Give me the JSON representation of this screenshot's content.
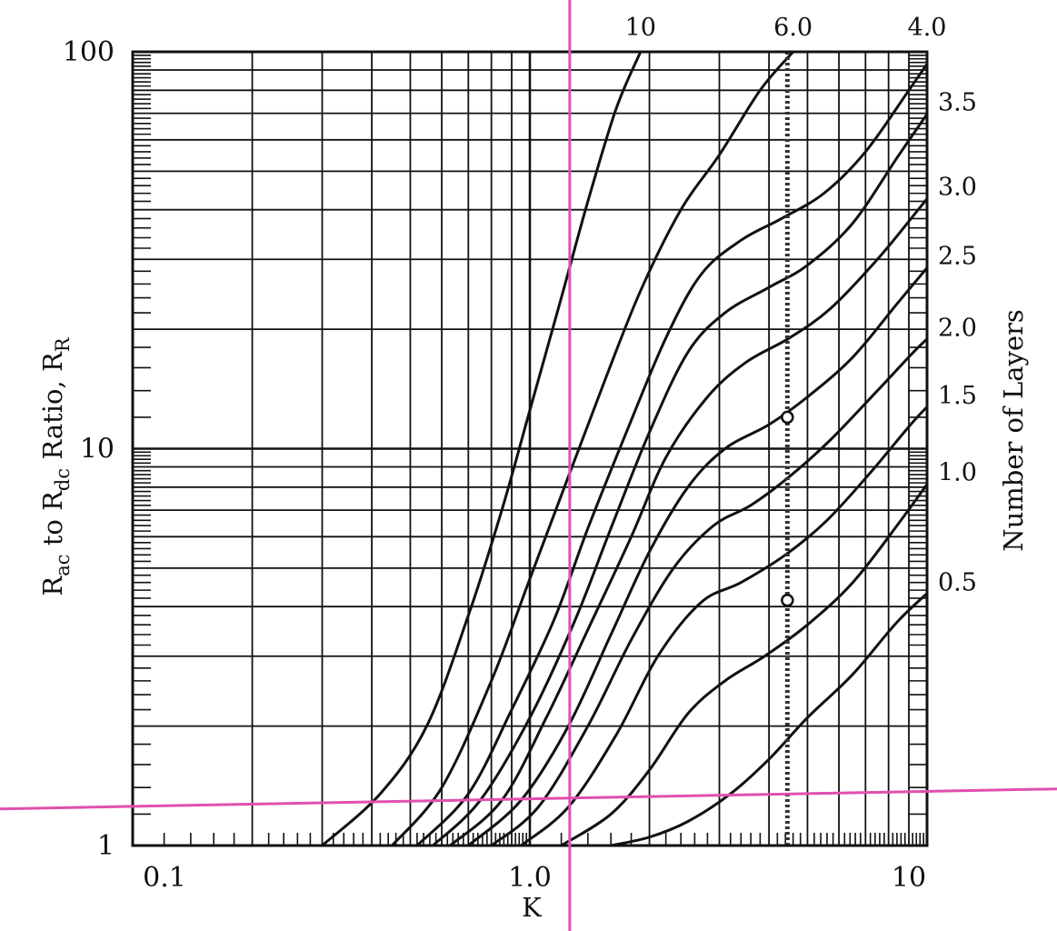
{
  "chart_data": {
    "type": "line",
    "title": "",
    "xlabel": "K",
    "ylabel_parts": [
      "R",
      "ac",
      " to R",
      "dc",
      " Ratio, R",
      "R"
    ],
    "y2label": "Number of Layers",
    "xscale": "log",
    "yscale": "log",
    "xlim": [
      0.1,
      10
    ],
    "ylim": [
      1,
      100
    ],
    "grid": true,
    "x_tick_labels": [
      {
        "value": 0.1,
        "label": "0.1"
      },
      {
        "value": 1.0,
        "label": "1.0"
      },
      {
        "value": 10,
        "label": "10"
      }
    ],
    "y_tick_labels": [
      {
        "value": 1,
        "label": "1"
      },
      {
        "value": 10,
        "label": "10"
      },
      {
        "value": 100,
        "label": "100"
      }
    ],
    "series": [
      {
        "name": "10",
        "points": [
          [
            0.3,
            1.0
          ],
          [
            0.42,
            1.35
          ],
          [
            0.55,
            2.0
          ],
          [
            0.7,
            3.8
          ],
          [
            0.85,
            7.0
          ],
          [
            1.0,
            12.5
          ],
          [
            1.2,
            24.0
          ],
          [
            1.4,
            42.0
          ],
          [
            1.65,
            72.0
          ],
          [
            1.9,
            100.0
          ]
        ]
      },
      {
        "name": "6.0",
        "points": [
          [
            0.45,
            1.0
          ],
          [
            0.6,
            1.4
          ],
          [
            0.8,
            2.6
          ],
          [
            1.0,
            4.7
          ],
          [
            1.25,
            8.5
          ],
          [
            1.55,
            15.0
          ],
          [
            1.9,
            25.0
          ],
          [
            2.4,
            40.0
          ],
          [
            3.0,
            55.0
          ],
          [
            3.8,
            80.0
          ],
          [
            4.6,
            100.0
          ]
        ]
      },
      {
        "name": "4.0",
        "points": [
          [
            0.52,
            1.0
          ],
          [
            0.7,
            1.35
          ],
          [
            0.9,
            2.2
          ],
          [
            1.15,
            3.7
          ],
          [
            1.4,
            6.3
          ],
          [
            1.75,
            11.0
          ],
          [
            2.2,
            19.0
          ],
          [
            2.7,
            27.5
          ],
          [
            3.4,
            33.5
          ],
          [
            4.3,
            38.0
          ],
          [
            5.5,
            44.0
          ],
          [
            7.0,
            56.0
          ],
          [
            9.0,
            80.0
          ],
          [
            10.5,
            100.0
          ]
        ]
      },
      {
        "name": "3.5",
        "points": [
          [
            0.57,
            1.0
          ],
          [
            0.75,
            1.3
          ],
          [
            1.0,
            2.1
          ],
          [
            1.3,
            3.7
          ],
          [
            1.6,
            6.3
          ],
          [
            2.0,
            11.0
          ],
          [
            2.5,
            17.5
          ],
          [
            3.1,
            22.0
          ],
          [
            4.0,
            25.5
          ],
          [
            5.0,
            29.0
          ],
          [
            6.5,
            37.0
          ],
          [
            8.5,
            55.0
          ],
          [
            11.0,
            80.0
          ]
        ]
      },
      {
        "name": "3.0",
        "points": [
          [
            0.63,
            1.0
          ],
          [
            0.85,
            1.3
          ],
          [
            1.1,
            2.1
          ],
          [
            1.4,
            3.5
          ],
          [
            1.8,
            6.0
          ],
          [
            2.2,
            9.5
          ],
          [
            2.8,
            13.5
          ],
          [
            3.5,
            16.5
          ],
          [
            4.5,
            19.0
          ],
          [
            5.7,
            22.5
          ],
          [
            7.5,
            30.0
          ],
          [
            9.5,
            40.0
          ],
          [
            11.0,
            48.0
          ]
        ]
      },
      {
        "name": "2.5",
        "points": [
          [
            0.7,
            1.0
          ],
          [
            0.95,
            1.3
          ],
          [
            1.25,
            2.0
          ],
          [
            1.6,
            3.4
          ],
          [
            2.0,
            5.5
          ],
          [
            2.5,
            8.0
          ],
          [
            3.1,
            10.0
          ],
          [
            4.0,
            11.5
          ],
          [
            5.0,
            13.5
          ],
          [
            6.5,
            17.0
          ],
          [
            8.5,
            23.5
          ],
          [
            11.0,
            32.0
          ]
        ]
      },
      {
        "name": "2.0",
        "points": [
          [
            0.8,
            1.0
          ],
          [
            1.05,
            1.25
          ],
          [
            1.4,
            2.0
          ],
          [
            1.8,
            3.3
          ],
          [
            2.3,
            5.0
          ],
          [
            2.9,
            6.4
          ],
          [
            3.6,
            7.2
          ],
          [
            4.5,
            8.5
          ],
          [
            5.7,
            10.5
          ],
          [
            7.5,
            14.0
          ],
          [
            9.5,
            18.0
          ],
          [
            11.0,
            20.5
          ]
        ]
      },
      {
        "name": "1.5",
        "points": [
          [
            0.95,
            1.0
          ],
          [
            1.25,
            1.25
          ],
          [
            1.65,
            1.9
          ],
          [
            2.1,
            3.0
          ],
          [
            2.7,
            4.1
          ],
          [
            3.4,
            4.6
          ],
          [
            4.4,
            5.4
          ],
          [
            5.6,
            6.6
          ],
          [
            7.2,
            8.7
          ],
          [
            9.3,
            11.8
          ],
          [
            11.0,
            14.0
          ]
        ]
      },
      {
        "name": "1.0",
        "points": [
          [
            1.2,
            1.0
          ],
          [
            1.6,
            1.2
          ],
          [
            2.0,
            1.55
          ],
          [
            2.5,
            2.15
          ],
          [
            3.1,
            2.6
          ],
          [
            3.9,
            3.0
          ],
          [
            5.0,
            3.6
          ],
          [
            6.5,
            4.6
          ],
          [
            8.5,
            6.5
          ],
          [
            11.0,
            9.3
          ]
        ]
      },
      {
        "name": "0.5",
        "points": [
          [
            1.6,
            1.0
          ],
          [
            2.0,
            1.05
          ],
          [
            2.5,
            1.15
          ],
          [
            3.2,
            1.35
          ],
          [
            4.0,
            1.65
          ],
          [
            5.0,
            2.1
          ],
          [
            6.5,
            2.7
          ],
          [
            8.5,
            3.7
          ],
          [
            11.0,
            4.7
          ]
        ]
      }
    ],
    "layer_labels": [
      {
        "label": "10",
        "series": "10"
      },
      {
        "label": "6.0",
        "series": "6.0"
      },
      {
        "label": "4.0",
        "series": "4.0"
      },
      {
        "label": "3.5",
        "series": "3.5"
      },
      {
        "label": "3.0",
        "series": "3.0"
      },
      {
        "label": "2.5",
        "series": "2.5"
      },
      {
        "label": "2.0",
        "series": "2.0"
      },
      {
        "label": "1.5",
        "series": "1.5"
      },
      {
        "label": "1.0",
        "series": "1.0"
      },
      {
        "label": "0.5",
        "series": "0.5"
      }
    ],
    "marker_line_x": 4.45,
    "marker_points": [
      [
        4.45,
        12.0
      ],
      [
        4.45,
        4.15
      ]
    ],
    "overlay_crosshair": {
      "x": 1.26,
      "y": 1.25,
      "color": "#e04fb0"
    },
    "colors": {
      "line": "#111111",
      "grid": "#111111",
      "marker_line": "#333333",
      "crosshair": "#e04fb0"
    }
  }
}
